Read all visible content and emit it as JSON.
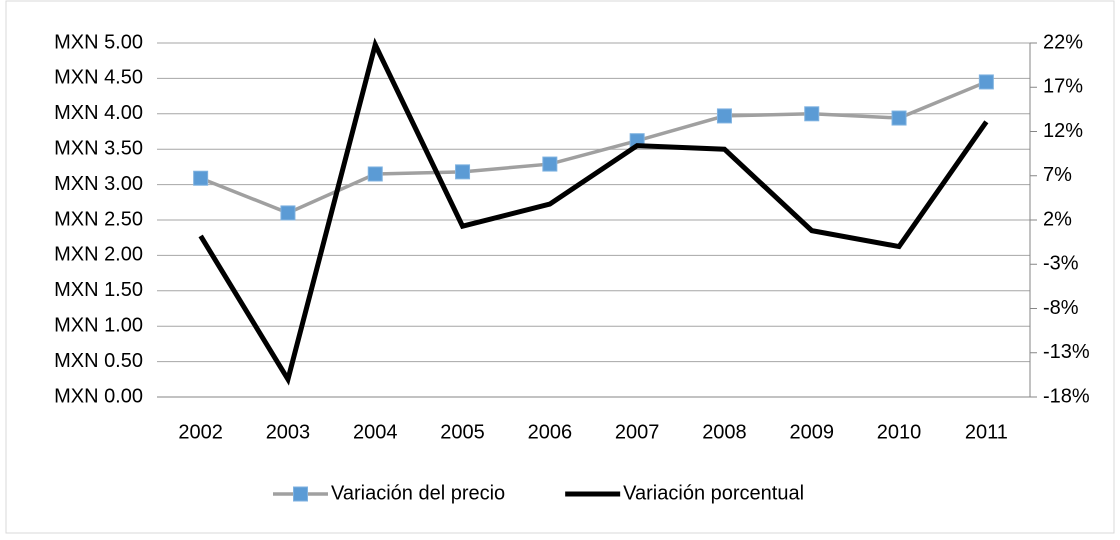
{
  "chart_data": {
    "type": "line",
    "categories": [
      "2002",
      "2003",
      "2004",
      "2005",
      "2006",
      "2007",
      "2008",
      "2009",
      "2010",
      "2011"
    ],
    "series": [
      {
        "name": "Variación del precio",
        "color": "#a0a0a0",
        "marker_color": "#5b9bd5",
        "values": [
          3.09,
          2.6,
          3.15,
          3.18,
          3.29,
          3.62,
          3.97,
          4.0,
          3.94,
          4.45
        ]
      },
      {
        "name": "Variación porcentual",
        "color": "#000000",
        "axis": "y2",
        "values": [
          0.2,
          -16.0,
          21.8,
          1.3,
          3.8,
          10.4,
          10.0,
          0.8,
          -1.0,
          13.1
        ]
      }
    ],
    "ylim": [
      0,
      5
    ],
    "yticks": [
      {
        "value": 0,
        "label": "MXN 0.00"
      },
      {
        "value": 0.5,
        "label": "MXN 0.50"
      },
      {
        "value": 1,
        "label": "MXN 1.00"
      },
      {
        "value": 1.5,
        "label": "MXN 1.50"
      },
      {
        "value": 2,
        "label": "MXN 2.00"
      },
      {
        "value": 2.5,
        "label": "MXN 2.50"
      },
      {
        "value": 3,
        "label": "MXN 3.00"
      },
      {
        "value": 3.5,
        "label": "MXN 3.50"
      },
      {
        "value": 4,
        "label": "MXN 4.00"
      },
      {
        "value": 4.5,
        "label": "MXN 4.50"
      },
      {
        "value": 5,
        "label": "MXN 5.00"
      }
    ],
    "y2lim": [
      -18,
      22
    ],
    "y2ticks": [
      {
        "value": -18,
        "label": "-18%"
      },
      {
        "value": -13,
        "label": "-13%"
      },
      {
        "value": -8,
        "label": "-8%"
      },
      {
        "value": -3,
        "label": "-3%"
      },
      {
        "value": 2,
        "label": "2%"
      },
      {
        "value": 7,
        "label": "7%"
      },
      {
        "value": 12,
        "label": "12%"
      },
      {
        "value": 17,
        "label": "17%"
      },
      {
        "value": 22,
        "label": "22%"
      }
    ],
    "grid": true,
    "legend": "bottom"
  }
}
